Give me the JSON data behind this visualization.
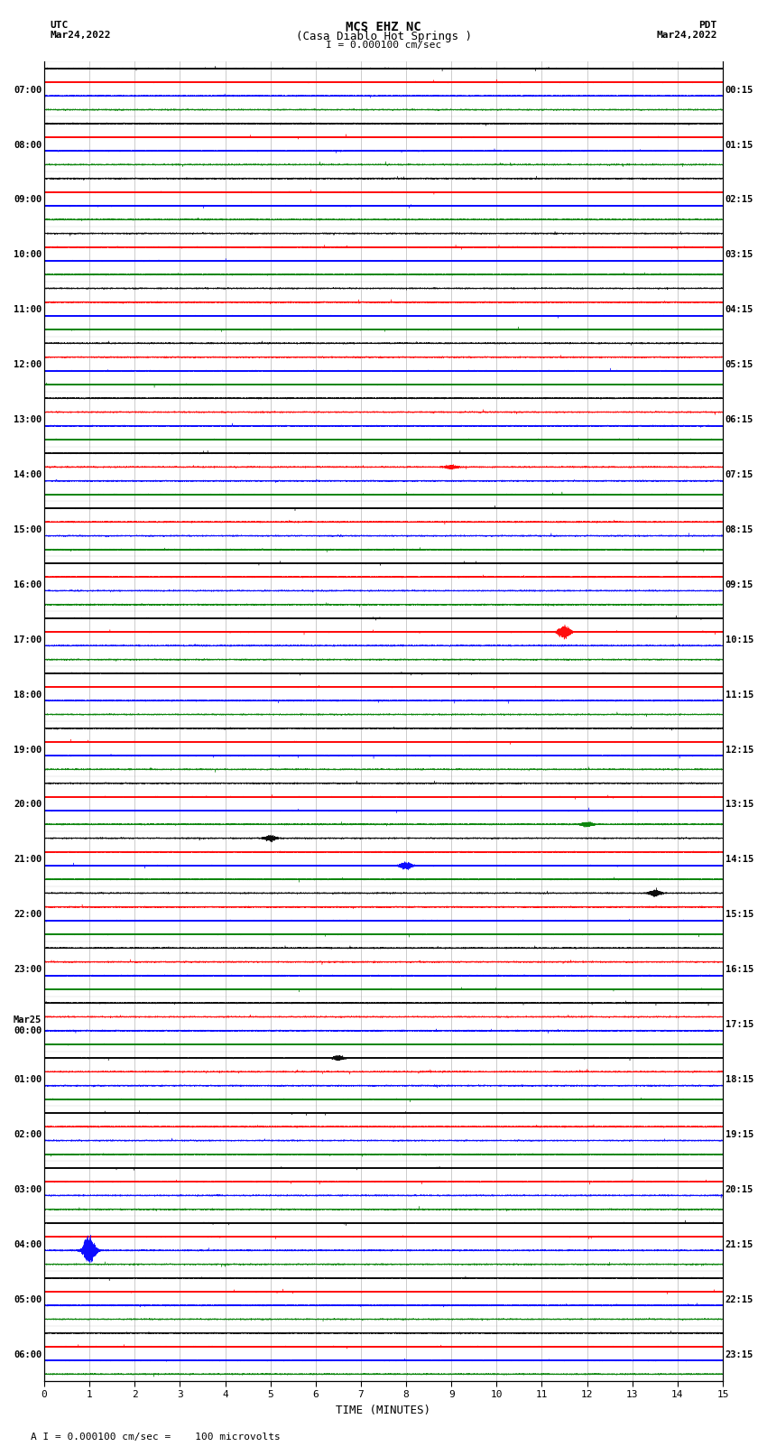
{
  "title_line1": "MCS EHZ NC",
  "title_line2": "(Casa Diablo Hot Springs )",
  "title_line3": "I = 0.000100 cm/sec",
  "label_left_top": "UTC",
  "label_left_date": "Mar24,2022",
  "label_right_top": "PDT",
  "label_right_date": "Mar24,2022",
  "xlabel": "TIME (MINUTES)",
  "footnote": "A I = 0.000100 cm/sec =    100 microvolts",
  "bg_color": "#ffffff",
  "grid_color": "#888888",
  "trace_colors": [
    "#000000",
    "#ff0000",
    "#0000ff",
    "#008000"
  ],
  "utc_labels": [
    "07:00",
    "08:00",
    "09:00",
    "10:00",
    "11:00",
    "12:00",
    "13:00",
    "14:00",
    "15:00",
    "16:00",
    "17:00",
    "18:00",
    "19:00",
    "20:00",
    "21:00",
    "22:00",
    "23:00",
    "Mar25\n00:00",
    "01:00",
    "02:00",
    "03:00",
    "04:00",
    "05:00",
    "06:00"
  ],
  "pdt_labels": [
    "00:15",
    "01:15",
    "02:15",
    "03:15",
    "04:15",
    "05:15",
    "06:15",
    "07:15",
    "08:15",
    "09:15",
    "10:15",
    "11:15",
    "12:15",
    "13:15",
    "14:15",
    "15:15",
    "16:15",
    "17:15",
    "18:15",
    "19:15",
    "20:15",
    "21:15",
    "22:15",
    "23:15"
  ],
  "n_rows": 24,
  "n_traces_per_row": 4,
  "minutes_per_row": 15,
  "sample_rate": 50,
  "amplitude_scale": 0.32,
  "noise_base": 0.055,
  "special_events": [
    {
      "row": 10,
      "trace": 1,
      "minute": 11.5,
      "amplitude": 1.5
    },
    {
      "row": 14,
      "trace": 2,
      "minute": 8.0,
      "amplitude": 0.9
    },
    {
      "row": 14,
      "trace": 0,
      "minute": 5.0,
      "amplitude": 0.7
    },
    {
      "row": 21,
      "trace": 2,
      "minute": 1.0,
      "amplitude": 3.0
    },
    {
      "row": 15,
      "trace": 0,
      "minute": 13.5,
      "amplitude": 0.8
    },
    {
      "row": 13,
      "trace": 3,
      "minute": 12.0,
      "amplitude": 0.6
    },
    {
      "row": 7,
      "trace": 1,
      "minute": 9.0,
      "amplitude": 0.5
    },
    {
      "row": 18,
      "trace": 0,
      "minute": 6.5,
      "amplitude": 0.6
    }
  ]
}
